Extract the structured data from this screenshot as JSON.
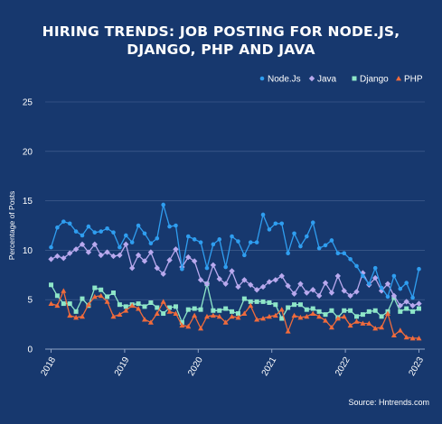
{
  "chart_data": {
    "type": "line",
    "title_line1": "HIRING TRENDS: JOB POSTING FOR NODE.JS,",
    "title_line2": "DJANGO, PHP AND JAVA",
    "ylabel": "Percentage of Posts",
    "xlabel": "",
    "ylim": [
      0,
      25
    ],
    "yticks": [
      0,
      5,
      10,
      15,
      20,
      25
    ],
    "xlim": [
      2017.92,
      2023.08
    ],
    "xticks": [
      2018,
      2019,
      2020,
      2021,
      2022,
      2023
    ],
    "grid": "horizontal",
    "legend_position": "top-right",
    "source": "Source: Hntrends.com",
    "series": [
      {
        "name": "Node.Js",
        "color": "#2f9ef0",
        "marker": "circle",
        "values": [
          10.3,
          12.3,
          12.9,
          12.7,
          11.9,
          11.5,
          12.4,
          11.8,
          11.9,
          12.2,
          11.8,
          10.3,
          11.5,
          10.8,
          12.5,
          11.7,
          10.7,
          11.2,
          14.6,
          12.4,
          12.5,
          8.1,
          11.4,
          11.1,
          10.8,
          8.2,
          10.6,
          11.1,
          8.3,
          11.4,
          10.9,
          9.5,
          10.8,
          10.8,
          13.6,
          12.1,
          12.7,
          12.7,
          9.7,
          11.7,
          10.4,
          11.4,
          12.8,
          10.2,
          10.5,
          11.0,
          9.7,
          9.7,
          9.1,
          8.4,
          7.4,
          6.6,
          8.2,
          6.2,
          5.3,
          7.4,
          6.1,
          6.7,
          5.2,
          8.1
        ]
      },
      {
        "name": "Java",
        "color": "#b9a9ee",
        "marker": "diamond",
        "values": [
          9.1,
          9.4,
          9.2,
          9.7,
          10.1,
          10.6,
          9.8,
          10.6,
          9.5,
          9.8,
          9.4,
          9.5,
          10.6,
          8.2,
          9.5,
          8.9,
          9.8,
          8.2,
          7.6,
          9.0,
          10.1,
          8.3,
          9.3,
          8.9,
          7.0,
          6.6,
          8.5,
          7.1,
          6.6,
          7.9,
          6.3,
          7.0,
          6.5,
          6.0,
          6.3,
          6.8,
          7.0,
          7.4,
          6.4,
          5.6,
          6.6,
          5.7,
          6.0,
          5.4,
          6.7,
          5.7,
          7.4,
          5.9,
          5.4,
          5.8,
          7.7,
          6.5,
          7.2,
          5.9,
          6.6,
          5.4,
          4.4,
          4.8,
          4.4,
          4.6
        ]
      },
      {
        "name": "Django",
        "color": "#8ee6c8",
        "marker": "square",
        "values": [
          6.5,
          5.4,
          4.6,
          4.6,
          3.8,
          5.1,
          4.4,
          6.2,
          6.0,
          5.3,
          5.7,
          4.5,
          4.3,
          4.5,
          4.6,
          4.3,
          4.7,
          4.2,
          3.6,
          4.2,
          4.3,
          2.7,
          4.0,
          4.1,
          4.0,
          6.6,
          3.9,
          3.9,
          4.1,
          3.8,
          3.6,
          5.1,
          4.8,
          4.8,
          4.8,
          4.7,
          4.5,
          3.1,
          4.2,
          4.5,
          4.5,
          4.0,
          4.1,
          3.8,
          3.5,
          3.9,
          3.2,
          3.9,
          3.9,
          3.3,
          3.5,
          3.8,
          3.9,
          3.3,
          3.8,
          5.2,
          3.8,
          4.1,
          3.8,
          4.1
        ]
      },
      {
        "name": "PHP",
        "color": "#f06b3c",
        "marker": "triangle",
        "values": [
          4.6,
          4.4,
          5.9,
          3.4,
          3.2,
          3.3,
          4.5,
          5.3,
          5.4,
          4.8,
          3.3,
          3.5,
          3.9,
          4.4,
          4.1,
          3.0,
          2.7,
          3.6,
          4.8,
          3.8,
          3.6,
          2.4,
          2.3,
          3.4,
          2.1,
          3.3,
          3.4,
          3.3,
          2.7,
          3.3,
          3.2,
          3.6,
          4.4,
          3.0,
          3.1,
          3.3,
          3.4,
          4.0,
          1.8,
          3.4,
          3.2,
          3.3,
          3.6,
          3.3,
          2.9,
          2.2,
          3.1,
          3.3,
          2.4,
          2.8,
          2.6,
          2.6,
          2.1,
          2.2,
          3.6,
          1.4,
          1.9,
          1.2,
          1.1,
          1.1
        ]
      }
    ]
  }
}
